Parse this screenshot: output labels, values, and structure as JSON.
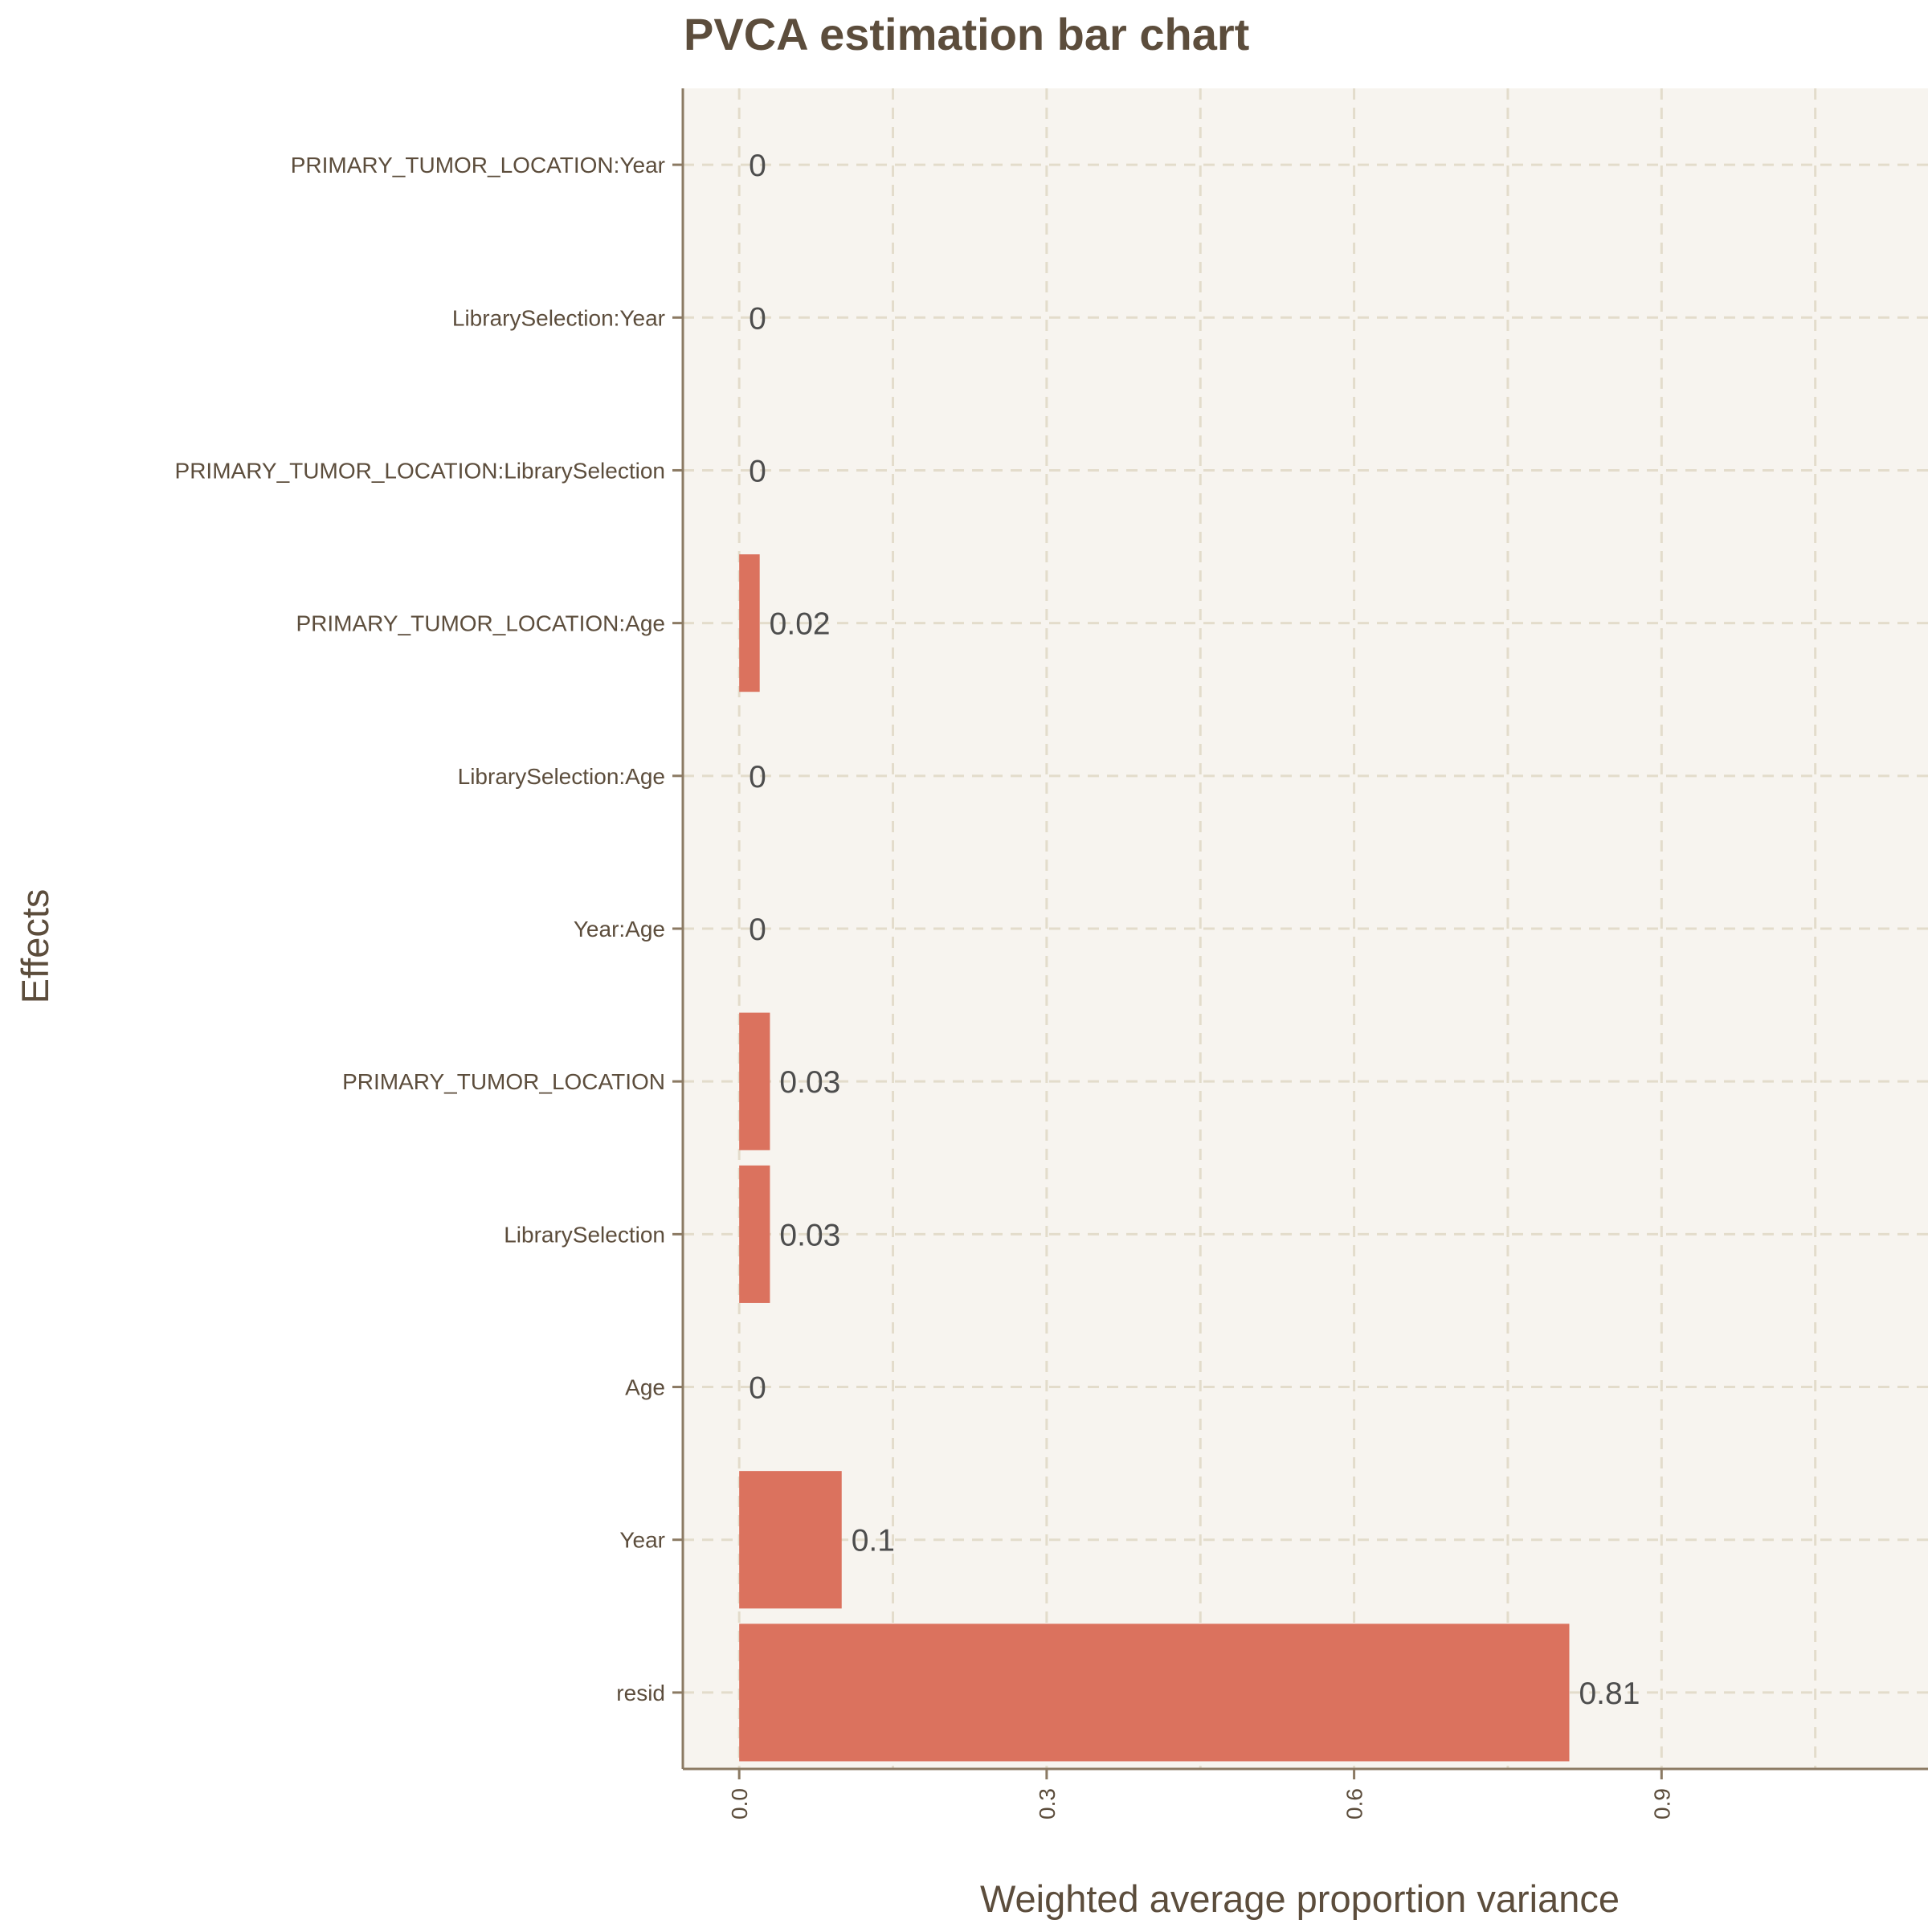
{
  "chart_data": {
    "type": "bar",
    "orientation": "horizontal",
    "title": "PVCA estimation bar chart",
    "xlabel": "Weighted average proportion variance",
    "ylabel": "Effects",
    "xlim": [
      -0.055,
      1.16
    ],
    "xticks": [
      0.0,
      0.3,
      0.6,
      0.9
    ],
    "xtick_labels": [
      "0.0",
      "0.3",
      "0.6",
      "0.9"
    ],
    "grid": true,
    "categories": [
      "resid",
      "Year",
      "Age",
      "LibrarySelection",
      "PRIMARY_TUMOR_LOCATION",
      "Year:Age",
      "LibrarySelection:Age",
      "PRIMARY_TUMOR_LOCATION:Age",
      "PRIMARY_TUMOR_LOCATION:LibrarySelection",
      "LibrarySelection:Year",
      "PRIMARY_TUMOR_LOCATION:Year"
    ],
    "values": [
      0.81,
      0.1,
      0.0,
      0.03,
      0.03,
      0.0,
      0.0,
      0.02,
      0.0,
      0.0,
      0.0
    ],
    "value_labels": [
      "0.81",
      "0.1",
      "0",
      "0.03",
      "0.03",
      "0",
      "0",
      "0.02",
      "0",
      "0",
      "0"
    ],
    "colors": {
      "bar": "#db725e",
      "panel_background": "#f7f4ef",
      "grid": "#e3dccb",
      "axis": "#8b7a63",
      "text": "#5c4d3c",
      "value_label": "#4d4d4d"
    }
  }
}
